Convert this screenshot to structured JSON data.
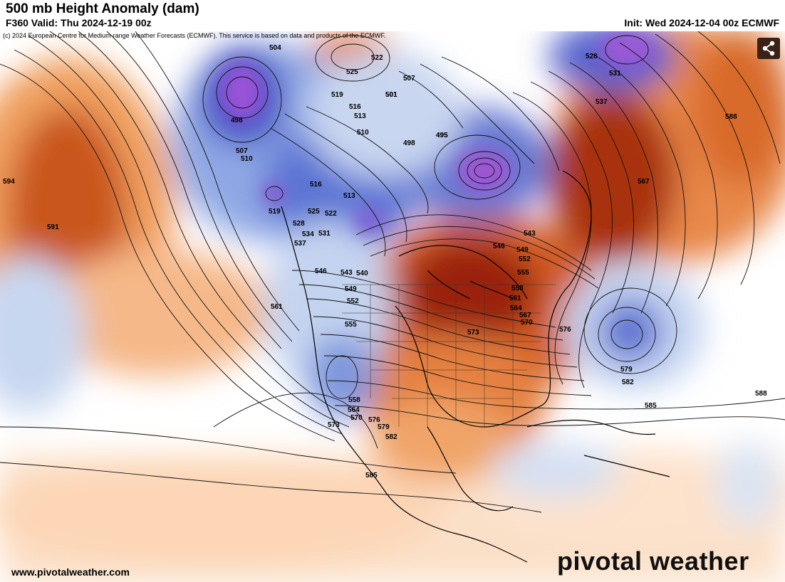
{
  "header": {
    "title": "500 mb Height Anomaly (dam)",
    "valid": "F360 Valid: Thu 2024-12-19 00z",
    "init": "Init: Wed 2024-12-04 00z ECMWF"
  },
  "map": {
    "copyright": "(c) 2024 European Centre for Medium-range Weather Forecasts (ECMWF). This service is based on data and products of the ECMWF.",
    "contour_labels": [
      "504",
      "498",
      "507",
      "510",
      "519",
      "516",
      "513",
      "525",
      "522",
      "528",
      "534",
      "531",
      "537",
      "546",
      "543",
      "540",
      "549",
      "552",
      "555",
      "561",
      "558",
      "564",
      "570",
      "573",
      "576",
      "579",
      "582",
      "585",
      "588",
      "591",
      "594",
      "501",
      "495",
      "567",
      "537",
      "531",
      "528",
      "525",
      "522",
      "519",
      "516",
      "513",
      "510",
      "507",
      "501",
      "498",
      "495",
      "543",
      "546",
      "549",
      "552",
      "555",
      "558",
      "561",
      "564",
      "567",
      "570",
      "573",
      "576",
      "579",
      "582",
      "585",
      "588"
    ],
    "colors": {
      "warm_light": "#fbd4b4",
      "warm_mid": "#ee8c45",
      "warm_dark": "#b8400a",
      "warm_deep": "#8a1208",
      "cool_light": "#d7e4f4",
      "cool_mid": "#6f8fdb",
      "cool_dark": "#3545c2",
      "cool_deep": "#8e4ad6"
    }
  },
  "footer": {
    "website": "www.pivotalweather.com",
    "brand": "pivotal weather"
  },
  "icons": {
    "share": "share-icon"
  }
}
